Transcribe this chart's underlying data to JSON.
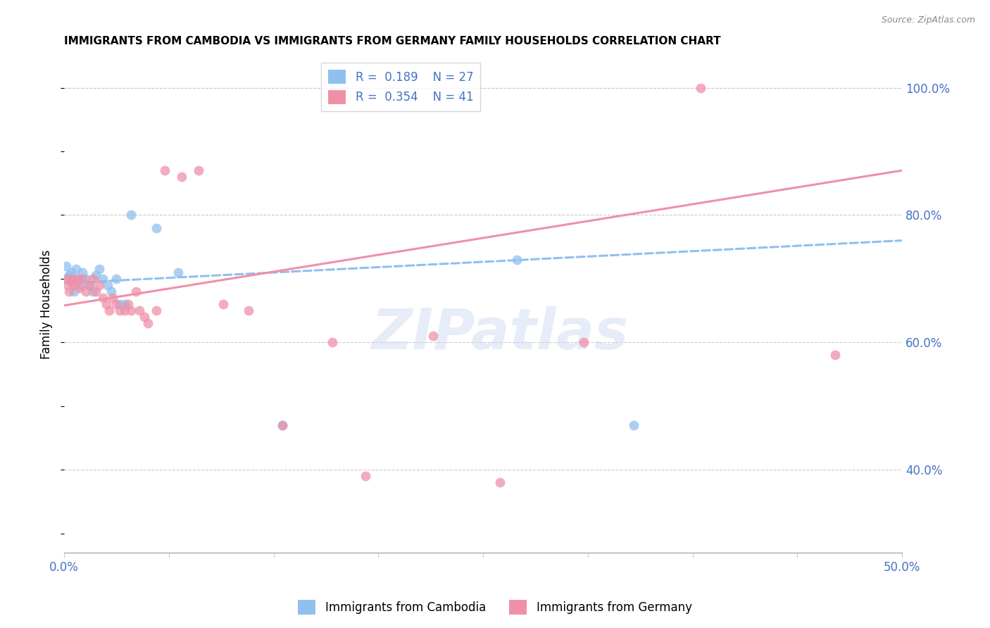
{
  "title": "IMMIGRANTS FROM CAMBODIA VS IMMIGRANTS FROM GERMANY FAMILY HOUSEHOLDS CORRELATION CHART",
  "source": "Source: ZipAtlas.com",
  "ylabel": "Family Households",
  "xlim": [
    0.0,
    0.5
  ],
  "ylim": [
    0.27,
    1.05
  ],
  "xticks": [
    0.0,
    0.0625,
    0.125,
    0.1875,
    0.25,
    0.3125,
    0.375,
    0.4375,
    0.5
  ],
  "xtick_labels_show": [
    "0.0%",
    "",
    "",
    "",
    "",
    "",
    "",
    "",
    "50.0%"
  ],
  "yticks_right": [
    0.4,
    0.6,
    0.8,
    1.0
  ],
  "r_cambodia": 0.189,
  "n_cambodia": 27,
  "r_germany": 0.354,
  "n_germany": 41,
  "color_cambodia": "#90C0EE",
  "color_germany": "#F090A8",
  "color_axis_labels": "#4472C4",
  "watermark": "ZIPatlas",
  "cambodia_x": [
    0.001,
    0.002,
    0.003,
    0.004,
    0.005,
    0.006,
    0.007,
    0.008,
    0.01,
    0.011,
    0.013,
    0.015,
    0.017,
    0.019,
    0.021,
    0.023,
    0.026,
    0.028,
    0.031,
    0.033,
    0.036,
    0.04,
    0.055,
    0.068,
    0.13,
    0.27,
    0.34
  ],
  "cambodia_y": [
    0.72,
    0.7,
    0.705,
    0.71,
    0.695,
    0.68,
    0.715,
    0.7,
    0.69,
    0.71,
    0.7,
    0.69,
    0.68,
    0.705,
    0.715,
    0.7,
    0.69,
    0.68,
    0.7,
    0.66,
    0.66,
    0.8,
    0.78,
    0.71,
    0.47,
    0.73,
    0.47
  ],
  "germany_x": [
    0.001,
    0.002,
    0.003,
    0.004,
    0.005,
    0.006,
    0.008,
    0.009,
    0.011,
    0.013,
    0.015,
    0.017,
    0.019,
    0.021,
    0.023,
    0.025,
    0.027,
    0.029,
    0.031,
    0.033,
    0.036,
    0.038,
    0.04,
    0.043,
    0.045,
    0.048,
    0.05,
    0.055,
    0.06,
    0.07,
    0.08,
    0.095,
    0.11,
    0.13,
    0.16,
    0.18,
    0.22,
    0.26,
    0.31,
    0.38,
    0.46
  ],
  "germany_y": [
    0.7,
    0.69,
    0.68,
    0.695,
    0.7,
    0.69,
    0.7,
    0.685,
    0.7,
    0.68,
    0.69,
    0.7,
    0.68,
    0.69,
    0.67,
    0.66,
    0.65,
    0.67,
    0.66,
    0.65,
    0.65,
    0.66,
    0.65,
    0.68,
    0.65,
    0.64,
    0.63,
    0.65,
    0.87,
    0.86,
    0.87,
    0.66,
    0.65,
    0.47,
    0.6,
    0.39,
    0.61,
    0.38,
    0.6,
    1.0,
    0.58
  ],
  "trend_cambodia_x0": 0.0,
  "trend_cambodia_y0": 0.693,
  "trend_cambodia_x1": 0.5,
  "trend_cambodia_y1": 0.76,
  "trend_germany_x0": 0.0,
  "trend_germany_y0": 0.658,
  "trend_germany_x1": 0.5,
  "trend_germany_y1": 0.87
}
